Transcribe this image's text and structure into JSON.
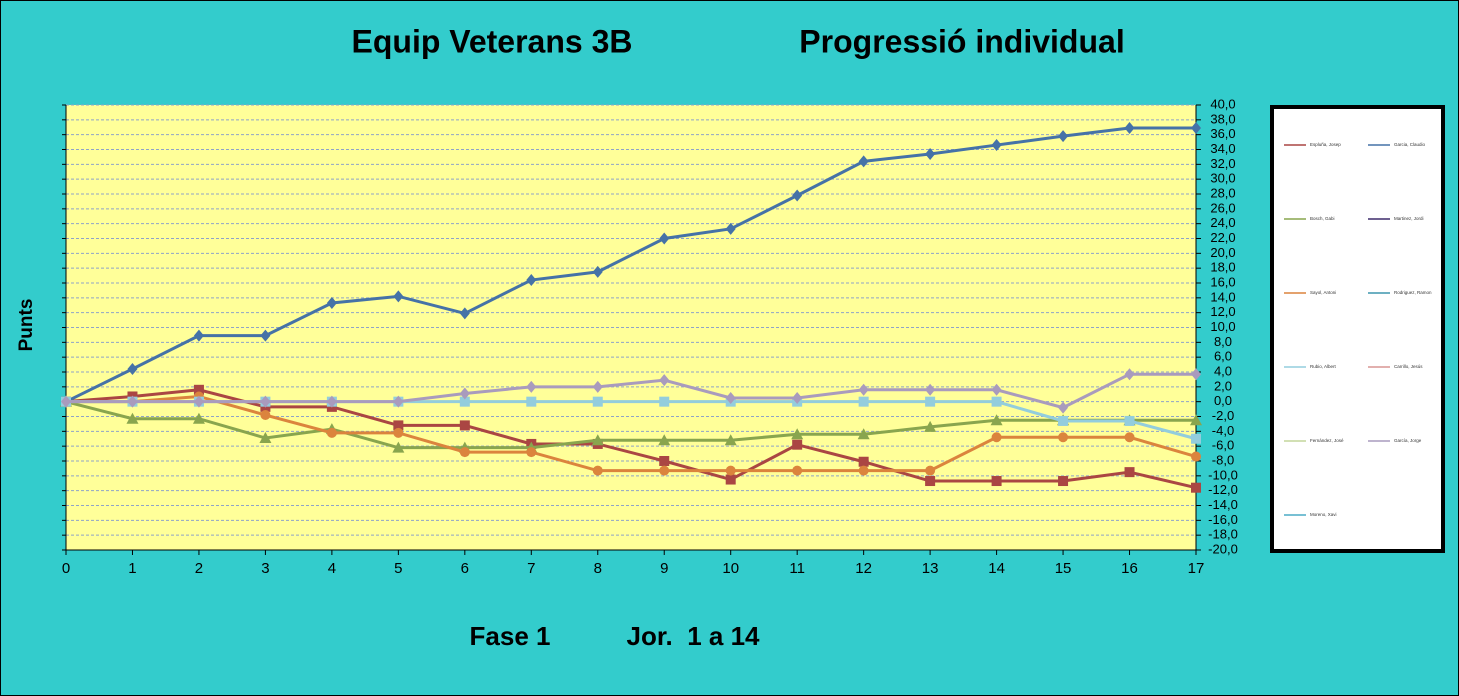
{
  "chart_data": {
    "type": "line",
    "title": "Equip Veterans 3B",
    "subtitle": "Progressió individual",
    "ylabel": "Punts",
    "footer": [
      "Fase 1",
      "Jor.  1 a 14"
    ],
    "x": [
      0,
      1,
      2,
      3,
      4,
      5,
      6,
      7,
      8,
      9,
      10,
      11,
      12,
      13,
      14,
      15,
      16,
      17
    ],
    "xlim": [
      0,
      17
    ],
    "xticks": [
      0,
      1,
      2,
      3,
      4,
      5,
      6,
      7,
      8,
      9,
      10,
      11,
      12,
      13,
      14,
      15,
      16,
      17
    ],
    "ylim": [
      -20,
      40
    ],
    "yticks": [
      {
        "value": 40,
        "label": "40,0"
      },
      {
        "value": 38,
        "label": "38,0"
      },
      {
        "value": 36,
        "label": "36,0"
      },
      {
        "value": 34,
        "label": "34,0"
      },
      {
        "value": 32,
        "label": "32,0"
      },
      {
        "value": 30,
        "label": "30,0"
      },
      {
        "value": 28,
        "label": "28,0"
      },
      {
        "value": 26,
        "label": "26,0"
      },
      {
        "value": 24,
        "label": "24,0"
      },
      {
        "value": 22,
        "label": "22,0"
      },
      {
        "value": 20,
        "label": "20,0"
      },
      {
        "value": 18,
        "label": "18,0"
      },
      {
        "value": 16,
        "label": "16,0"
      },
      {
        "value": 14,
        "label": "14,0"
      },
      {
        "value": 12,
        "label": "12,0"
      },
      {
        "value": 10,
        "label": "10,0"
      },
      {
        "value": 8,
        "label": "8,0"
      },
      {
        "value": 6,
        "label": "6,0"
      },
      {
        "value": 4,
        "label": "4,0"
      },
      {
        "value": 2,
        "label": "2,0"
      },
      {
        "value": 0,
        "label": "0,0"
      },
      {
        "value": -2,
        "label": "-2,0"
      },
      {
        "value": -4,
        "label": "-4,0"
      },
      {
        "value": -6,
        "label": "-6,0"
      },
      {
        "value": -8,
        "label": "-8,0"
      },
      {
        "value": -10,
        "label": "-10,0"
      },
      {
        "value": -12,
        "label": "-12,0"
      },
      {
        "value": -14,
        "label": "-14,0"
      },
      {
        "value": -16,
        "label": "-16,0"
      },
      {
        "value": -18,
        "label": "-18,0"
      },
      {
        "value": -20,
        "label": "-20,0"
      }
    ],
    "grid": true,
    "legend": "right",
    "series": [
      {
        "name": "Espluña, Josep",
        "color": "#AA4643",
        "marker": "square",
        "values": [
          0,
          0.7,
          1.6,
          -0.7,
          -0.7,
          -3.2,
          -3.2,
          -5.7,
          -5.7,
          -8.0,
          -10.5,
          -5.8,
          -8.1,
          -10.7,
          -10.7,
          -10.7,
          -9.5,
          -11.6
        ]
      },
      {
        "name": "Garcia, Claudio",
        "color": "#4572A7",
        "marker": "diamond",
        "values": [
          0,
          4.4,
          8.9,
          8.9,
          13.3,
          14.2,
          11.9,
          16.4,
          17.5,
          22.0,
          23.3,
          27.8,
          32.4,
          33.4,
          34.6,
          35.8,
          36.9,
          36.9
        ]
      },
      {
        "name": "Bosch, Gabi",
        "color": "#89A54E",
        "marker": "triangle",
        "values": [
          0,
          -2.3,
          -2.3,
          -4.9,
          -3.7,
          -6.2,
          -6.2,
          -6.2,
          -5.2,
          -5.2,
          -5.2,
          -4.4,
          -4.4,
          -3.4,
          -2.5,
          -2.5,
          -2.5,
          -2.5
        ]
      },
      {
        "name": "Martinez, Jordi",
        "color": "#3D2B6B",
        "marker": "diamond",
        "values": [
          null,
          null,
          null,
          null,
          null,
          null,
          null,
          null,
          null,
          null,
          null,
          null,
          null,
          null,
          null,
          null,
          null,
          null
        ]
      },
      {
        "name": "Sayol, Antoni",
        "color": "#DB843D",
        "marker": "circle",
        "values": [
          0,
          0,
          0.7,
          -1.8,
          -4.2,
          -4.2,
          -6.8,
          -6.8,
          -9.3,
          -9.3,
          -9.3,
          -9.3,
          -9.3,
          -9.3,
          -4.8,
          -4.8,
          -4.8,
          -7.4
        ]
      },
      {
        "name": "Rodriguez, Ramon",
        "color": "#3D96AE",
        "marker": "triangle",
        "values": [
          null,
          null,
          null,
          null,
          null,
          null,
          null,
          null,
          null,
          null,
          null,
          null,
          null,
          null,
          null,
          null,
          null,
          null
        ]
      },
      {
        "name": "Rubio, Albert",
        "color": "#93CDDD",
        "marker": "square",
        "values": [
          0,
          0,
          0,
          0,
          0,
          0,
          0,
          0,
          0,
          0,
          0,
          0,
          0,
          0,
          0,
          -2.6,
          -2.6,
          -5.0
        ]
      },
      {
        "name": "Carrillo, Jesús",
        "color": "#D99694",
        "marker": "diamond",
        "values": [
          null,
          null,
          null,
          null,
          null,
          null,
          null,
          null,
          null,
          null,
          null,
          null,
          null,
          null,
          null,
          null,
          null,
          null
        ]
      },
      {
        "name": "Fernández, José",
        "color": "#C3D69B",
        "marker": "triangle",
        "values": [
          null,
          null,
          null,
          null,
          null,
          null,
          null,
          null,
          null,
          null,
          null,
          null,
          null,
          null,
          null,
          null,
          null,
          null
        ]
      },
      {
        "name": "García, Jorge",
        "color": "#A99BBD",
        "marker": "diamond",
        "values": [
          0,
          0,
          0,
          0,
          0,
          0,
          1.1,
          2.0,
          2.0,
          2.9,
          0.5,
          0.5,
          1.6,
          1.6,
          1.6,
          -0.8,
          3.7,
          3.7
        ]
      },
      {
        "name": "Moreno, Xavi",
        "color": "#4BACC6",
        "marker": "diamond",
        "values": [
          null,
          null,
          null,
          null,
          null,
          null,
          null,
          null,
          null,
          null,
          null,
          null,
          null,
          null,
          null,
          null,
          null,
          null
        ]
      }
    ]
  }
}
